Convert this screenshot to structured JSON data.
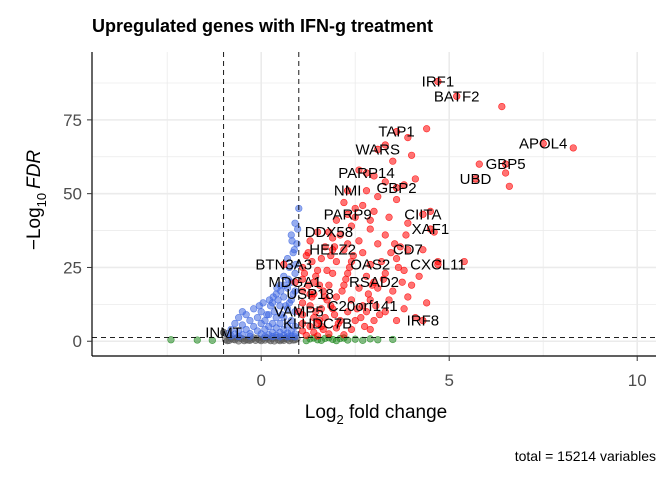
{
  "chart_data": {
    "type": "scatter",
    "title": "Upregulated genes with IFN-g treatment",
    "xlabel_main": "Log",
    "xlabel_sub": "2",
    "xlabel_rest": " fold change",
    "ylabel_prefix": "−Log",
    "ylabel_sub": "10",
    "ylabel_rest": "FDR",
    "caption": "total = 15214 variables",
    "xlim": [
      -4.5,
      10.5
    ],
    "ylim": [
      -5,
      98
    ],
    "x_ticks": [
      0,
      5,
      10
    ],
    "y_ticks": [
      0,
      25,
      50,
      75
    ],
    "x_tick_labels": [
      "0",
      "5",
      "10"
    ],
    "y_tick_labels": [
      "0",
      "25",
      "50",
      "75"
    ],
    "fc_cutoffs": [
      -1,
      1
    ],
    "fdr_cutoff": 1.3,
    "grid": true,
    "colors": {
      "ns": "#595959",
      "log2fc": "#228B22",
      "p": "#4169E1",
      "p_and_log2fc": "#FF0000"
    },
    "labeled_genes": [
      {
        "gene": "IRF1",
        "x": 4.7,
        "y": 88
      },
      {
        "gene": "BATF2",
        "x": 5.2,
        "y": 83
      },
      {
        "gene": "APOL4",
        "x": 7.5,
        "y": 67
      },
      {
        "gene": "TAP1",
        "x": 3.6,
        "y": 71
      },
      {
        "gene": "WARS",
        "x": 3.1,
        "y": 65
      },
      {
        "gene": "GBP5",
        "x": 6.5,
        "y": 60
      },
      {
        "gene": "PARP14",
        "x": 2.8,
        "y": 57
      },
      {
        "gene": "UBD",
        "x": 5.7,
        "y": 55
      },
      {
        "gene": "GBP2",
        "x": 3.6,
        "y": 52
      },
      {
        "gene": "NMI",
        "x": 2.3,
        "y": 51
      },
      {
        "gene": "PARP9",
        "x": 2.3,
        "y": 43
      },
      {
        "gene": "CIITA",
        "x": 4.3,
        "y": 43
      },
      {
        "gene": "DDX58",
        "x": 1.8,
        "y": 37
      },
      {
        "gene": "XAF1",
        "x": 4.5,
        "y": 38
      },
      {
        "gene": "HELZ2",
        "x": 1.9,
        "y": 31
      },
      {
        "gene": "CD7",
        "x": 3.9,
        "y": 31
      },
      {
        "gene": "BTN3A3",
        "x": 0.6,
        "y": 26
      },
      {
        "gene": "OAS2",
        "x": 2.9,
        "y": 26
      },
      {
        "gene": "CXCL11",
        "x": 4.7,
        "y": 26
      },
      {
        "gene": "MDGA1",
        "x": 0.9,
        "y": 20
      },
      {
        "gene": "RSAD2",
        "x": 3.0,
        "y": 20
      },
      {
        "gene": "USP18",
        "x": 1.3,
        "y": 16
      },
      {
        "gene": "C20orf141",
        "x": 2.7,
        "y": 12
      },
      {
        "gene": "VAMP5",
        "x": 1.0,
        "y": 10
      },
      {
        "gene": "IRF8",
        "x": 4.3,
        "y": 7
      },
      {
        "gene": "KLHDC7B",
        "x": 1.5,
        "y": 6
      },
      {
        "gene": "INMT",
        "x": -1.0,
        "y": 3
      }
    ],
    "red_points": [
      [
        6.4,
        79.5
      ],
      [
        8.3,
        65.5
      ],
      [
        5.8,
        60
      ],
      [
        6.5,
        57
      ],
      [
        6.6,
        52.5
      ],
      [
        4.4,
        72
      ],
      [
        3.9,
        69
      ],
      [
        3.3,
        66.5
      ],
      [
        4.0,
        63
      ],
      [
        3.5,
        61
      ],
      [
        2.6,
        58
      ],
      [
        3.0,
        56
      ],
      [
        3.3,
        54
      ],
      [
        3.8,
        53
      ],
      [
        4.1,
        55
      ],
      [
        2.8,
        51
      ],
      [
        3.1,
        49
      ],
      [
        3.6,
        48
      ],
      [
        2.2,
        47
      ],
      [
        2.5,
        45
      ],
      [
        3.0,
        44
      ],
      [
        3.4,
        42
      ],
      [
        3.9,
        40
      ],
      [
        4.5,
        44
      ],
      [
        4.6,
        37
      ],
      [
        2.0,
        41
      ],
      [
        2.4,
        39
      ],
      [
        2.9,
        38
      ],
      [
        3.3,
        36
      ],
      [
        1.5,
        37
      ],
      [
        1.9,
        35
      ],
      [
        2.6,
        34
      ],
      [
        3.1,
        33
      ],
      [
        3.7,
        32
      ],
      [
        4.3,
        31
      ],
      [
        1.3,
        34
      ],
      [
        1.7,
        32
      ],
      [
        2.2,
        31
      ],
      [
        2.7,
        30
      ],
      [
        1.2,
        29
      ],
      [
        1.6,
        28
      ],
      [
        2.0,
        27
      ],
      [
        2.4,
        27
      ],
      [
        3.2,
        27
      ],
      [
        3.6,
        28
      ],
      [
        4.7,
        27
      ],
      [
        5.4,
        27
      ],
      [
        1.1,
        25
      ],
      [
        1.5,
        24
      ],
      [
        1.9,
        23
      ],
      [
        2.3,
        23
      ],
      [
        2.8,
        22
      ],
      [
        3.3,
        23
      ],
      [
        3.8,
        24
      ],
      [
        4.2,
        22
      ],
      [
        1.1,
        21
      ],
      [
        1.4,
        20
      ],
      [
        1.8,
        19
      ],
      [
        2.2,
        19
      ],
      [
        2.6,
        18
      ],
      [
        3.1,
        18
      ],
      [
        3.5,
        17
      ],
      [
        4.0,
        19
      ],
      [
        1.1,
        17
      ],
      [
        1.4,
        16
      ],
      [
        1.7,
        15
      ],
      [
        2.0,
        15
      ],
      [
        2.4,
        14
      ],
      [
        2.9,
        14
      ],
      [
        3.4,
        14
      ],
      [
        3.9,
        15
      ],
      [
        4.4,
        13
      ],
      [
        1.1,
        13
      ],
      [
        1.3,
        12
      ],
      [
        1.6,
        11
      ],
      [
        1.9,
        11
      ],
      [
        2.3,
        10
      ],
      [
        2.8,
        10
      ],
      [
        3.3,
        10
      ],
      [
        3.8,
        11
      ],
      [
        1.1,
        9
      ],
      [
        1.4,
        8
      ],
      [
        1.7,
        8
      ],
      [
        2.1,
        7
      ],
      [
        2.5,
        7
      ],
      [
        3.0,
        7
      ],
      [
        3.6,
        7
      ],
      [
        4.1,
        8
      ],
      [
        1.1,
        6
      ],
      [
        1.3,
        5
      ],
      [
        1.6,
        5
      ],
      [
        2.0,
        4.5
      ],
      [
        2.4,
        4
      ],
      [
        2.9,
        4
      ],
      [
        1.1,
        3.5
      ],
      [
        1.4,
        3
      ],
      [
        1.8,
        2.5
      ],
      [
        2.2,
        2.2
      ],
      [
        1.2,
        2
      ],
      [
        1.5,
        1.8
      ],
      [
        1.25,
        30
      ],
      [
        1.35,
        27
      ],
      [
        1.45,
        22
      ],
      [
        1.55,
        19
      ],
      [
        1.65,
        17
      ],
      [
        1.75,
        14
      ],
      [
        1.85,
        12
      ],
      [
        1.95,
        9
      ],
      [
        2.05,
        6
      ],
      [
        2.15,
        17
      ],
      [
        2.25,
        21
      ],
      [
        2.35,
        25
      ],
      [
        2.45,
        29
      ],
      [
        2.55,
        11
      ],
      [
        2.65,
        8
      ],
      [
        2.75,
        5
      ],
      [
        2.85,
        16
      ],
      [
        2.95,
        19
      ],
      [
        3.05,
        12
      ],
      [
        3.15,
        9
      ],
      [
        3.25,
        21
      ],
      [
        3.45,
        30
      ],
      [
        3.55,
        33
      ],
      [
        3.65,
        25
      ],
      [
        3.75,
        20
      ],
      [
        3.85,
        36
      ],
      [
        1.15,
        23
      ],
      [
        1.25,
        19
      ],
      [
        1.35,
        15
      ],
      [
        1.45,
        10
      ],
      [
        1.55,
        7
      ],
      [
        1.65,
        4
      ],
      [
        1.75,
        24
      ],
      [
        1.85,
        29
      ],
      [
        1.95,
        32
      ],
      [
        2.1,
        36
      ],
      [
        2.3,
        33
      ],
      [
        2.5,
        42
      ],
      [
        2.7,
        46
      ],
      [
        2.9,
        41
      ]
    ],
    "blue_points": [
      [
        1.0,
        45
      ],
      [
        0.9,
        40
      ],
      [
        0.8,
        36
      ],
      [
        0.95,
        33
      ],
      [
        0.85,
        30
      ],
      [
        0.7,
        28
      ],
      [
        0.75,
        25
      ],
      [
        0.9,
        23
      ],
      [
        0.6,
        22
      ],
      [
        0.8,
        20
      ],
      [
        0.5,
        19
      ],
      [
        0.7,
        18
      ],
      [
        0.9,
        17
      ],
      [
        0.4,
        16
      ],
      [
        0.6,
        15
      ],
      [
        0.8,
        14
      ],
      [
        0.3,
        13
      ],
      [
        0.5,
        12
      ],
      [
        0.7,
        11
      ],
      [
        0.9,
        10
      ],
      [
        -0.5,
        10
      ],
      [
        -0.4,
        9
      ],
      [
        -0.2,
        11
      ],
      [
        0.0,
        10
      ],
      [
        0.2,
        9
      ],
      [
        0.4,
        8
      ],
      [
        0.6,
        8
      ],
      [
        0.8,
        7
      ],
      [
        -0.6,
        8
      ],
      [
        -0.3,
        7
      ],
      [
        -0.1,
        8
      ],
      [
        0.1,
        7
      ],
      [
        0.3,
        6
      ],
      [
        0.5,
        6
      ],
      [
        0.7,
        5.5
      ],
      [
        0.9,
        5
      ],
      [
        -0.7,
        6
      ],
      [
        -0.5,
        5.5
      ],
      [
        -0.2,
        5
      ],
      [
        0.0,
        6
      ],
      [
        0.2,
        5
      ],
      [
        0.4,
        4.5
      ],
      [
        0.6,
        4
      ],
      [
        0.8,
        3.5
      ],
      [
        -0.8,
        4
      ],
      [
        -0.6,
        3.5
      ],
      [
        -0.4,
        4
      ],
      [
        -0.1,
        3.5
      ],
      [
        0.1,
        4
      ],
      [
        0.3,
        3
      ],
      [
        0.5,
        3
      ],
      [
        0.7,
        2.8
      ],
      [
        0.9,
        2.5
      ],
      [
        -0.9,
        2.6
      ],
      [
        -0.7,
        2.4
      ],
      [
        -0.5,
        2.2
      ],
      [
        -0.3,
        2.6
      ],
      [
        0.0,
        2.5
      ],
      [
        0.2,
        2.2
      ],
      [
        0.4,
        2.0
      ],
      [
        0.6,
        2.0
      ],
      [
        0.8,
        1.8
      ],
      [
        -0.8,
        1.8
      ],
      [
        -0.6,
        1.6
      ],
      [
        -0.3,
        1.7
      ],
      [
        0.1,
        1.6
      ],
      [
        0.3,
        1.6
      ],
      [
        0.5,
        1.5
      ],
      [
        0.7,
        1.5
      ],
      [
        0.9,
        1.5
      ],
      [
        0.55,
        9
      ],
      [
        0.65,
        12
      ],
      [
        0.75,
        13
      ],
      [
        0.85,
        16
      ],
      [
        0.45,
        14
      ],
      [
        0.35,
        10
      ],
      [
        0.25,
        12
      ],
      [
        0.15,
        9
      ],
      [
        0.05,
        13
      ],
      [
        -0.05,
        12
      ],
      [
        0.92,
        26
      ],
      [
        0.88,
        31
      ],
      [
        0.82,
        34
      ],
      [
        0.97,
        38
      ],
      [
        0.72,
        21
      ],
      [
        0.62,
        19
      ],
      [
        0.52,
        17
      ],
      [
        0.42,
        18
      ],
      [
        0.32,
        15
      ],
      [
        0.22,
        14
      ]
    ],
    "green_points": [
      [
        -2.4,
        0.5
      ],
      [
        -1.7,
        0.4
      ],
      [
        -1.3,
        0.3
      ],
      [
        1.3,
        0.8
      ],
      [
        1.5,
        0.5
      ],
      [
        1.7,
        1.0
      ],
      [
        1.9,
        0.6
      ],
      [
        2.1,
        0.9
      ],
      [
        2.3,
        0.4
      ],
      [
        2.5,
        0.7
      ],
      [
        2.7,
        0.3
      ],
      [
        2.9,
        0.8
      ],
      [
        3.1,
        0.5
      ],
      [
        3.5,
        0.6
      ],
      [
        1.2,
        0.2
      ],
      [
        1.4,
        1.1
      ],
      [
        1.6,
        0.3
      ],
      [
        1.8,
        1.2
      ],
      [
        2.0,
        0.2
      ],
      [
        2.2,
        1.1
      ]
    ],
    "gray_points": [
      [
        -0.9,
        0.2
      ],
      [
        -0.7,
        0.5
      ],
      [
        -0.5,
        0.8
      ],
      [
        -0.3,
        0.3
      ],
      [
        -0.1,
        1.0
      ],
      [
        0.1,
        0.4
      ],
      [
        0.3,
        0.9
      ],
      [
        0.5,
        0.2
      ],
      [
        0.7,
        0.7
      ],
      [
        0.9,
        0.5
      ],
      [
        -0.8,
        0.9
      ],
      [
        -0.6,
        0.1
      ],
      [
        -0.4,
        0.6
      ],
      [
        -0.2,
        1.1
      ],
      [
        0.0,
        0.2
      ],
      [
        0.2,
        0.7
      ],
      [
        0.4,
        1.2
      ],
      [
        0.6,
        0.3
      ],
      [
        0.8,
        1.0
      ],
      [
        -0.95,
        0.6
      ],
      [
        -0.85,
        0.3
      ],
      [
        -0.65,
        1.1
      ],
      [
        -0.45,
        0.2
      ],
      [
        -0.25,
        0.7
      ],
      [
        -0.05,
        0.5
      ],
      [
        0.15,
        1.2
      ],
      [
        0.35,
        0.1
      ],
      [
        0.55,
        0.6
      ],
      [
        0.75,
        0.2
      ],
      [
        0.95,
        0.9
      ],
      [
        -0.15,
        0.3
      ],
      [
        0.05,
        0.8
      ],
      [
        0.25,
        0.2
      ],
      [
        0.45,
        0.5
      ],
      [
        0.65,
        1.1
      ],
      [
        0.85,
        0.4
      ],
      [
        -0.35,
        0.4
      ],
      [
        -0.55,
        1.0
      ],
      [
        -0.75,
        0.7
      ],
      [
        0.6,
        0.9
      ]
    ]
  }
}
